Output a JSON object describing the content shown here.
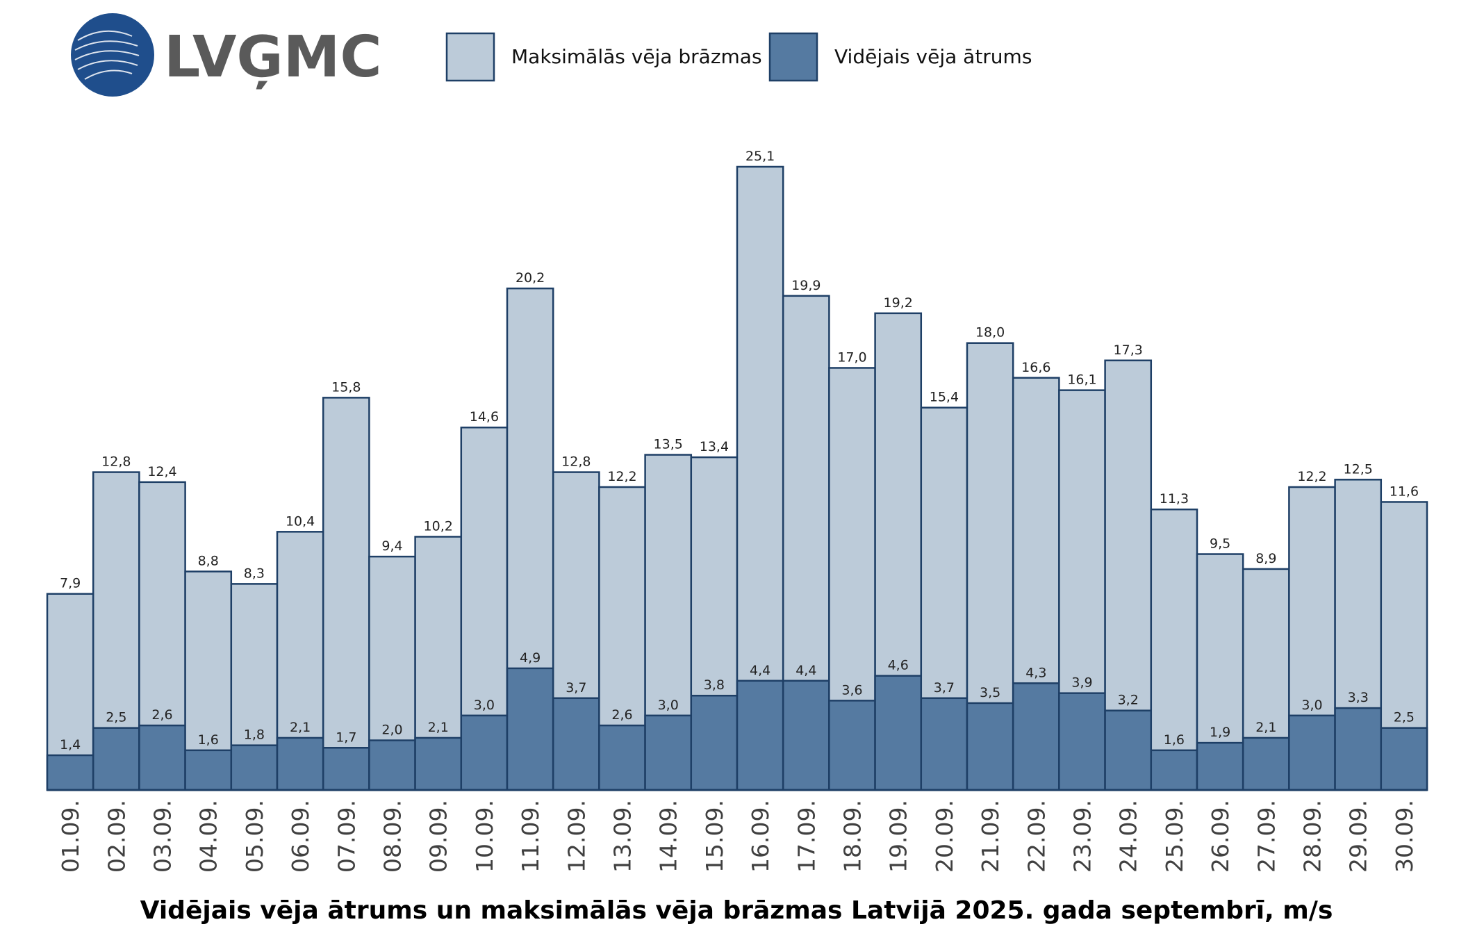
{
  "logo": {
    "text": "LVĢMC",
    "text_color": "#5a5a5a",
    "emblem_color": "#1f4e8c"
  },
  "colors": {
    "gust_fill": "#bccbd9",
    "avg_fill": "#557aa1",
    "bar_stroke": "#1e3f66",
    "axis": "#1e3f66"
  },
  "chart_data": {
    "type": "bar",
    "title": "Vidējais vēja ātrums un maksimālās vēja brāzmas Latvijā 2025. gada septembrī, m/s",
    "categories": [
      "01.09.",
      "02.09.",
      "03.09.",
      "04.09.",
      "05.09.",
      "06.09.",
      "07.09.",
      "08.09.",
      "09.09.",
      "10.09.",
      "11.09.",
      "12.09.",
      "13.09.",
      "14.09.",
      "15.09.",
      "16.09.",
      "17.09.",
      "18.09.",
      "19.09.",
      "20.09.",
      "21.09.",
      "22.09.",
      "23.09.",
      "24.09.",
      "25.09.",
      "26.09.",
      "27.09.",
      "28.09.",
      "29.09.",
      "30.09."
    ],
    "series": [
      {
        "name": "Maksimālās vēja brāzmas",
        "values": [
          7.9,
          12.8,
          12.4,
          8.8,
          8.3,
          10.4,
          15.8,
          9.4,
          10.2,
          14.6,
          20.2,
          12.8,
          12.2,
          13.5,
          13.4,
          25.1,
          19.9,
          17.0,
          19.2,
          15.4,
          18.0,
          16.6,
          16.1,
          17.3,
          11.3,
          9.5,
          8.9,
          12.2,
          12.5,
          11.6
        ]
      },
      {
        "name": "Vidējais vēja ātrums",
        "values": [
          1.4,
          2.5,
          2.6,
          1.6,
          1.8,
          2.1,
          1.7,
          2.0,
          2.1,
          3.0,
          4.9,
          3.7,
          2.6,
          3.0,
          3.8,
          4.4,
          4.4,
          3.6,
          4.6,
          3.7,
          3.5,
          4.3,
          3.9,
          3.2,
          1.6,
          1.9,
          2.1,
          3.0,
          3.3,
          2.5
        ]
      }
    ],
    "overlay": true,
    "ylim": [
      0,
      25.1
    ],
    "y_axis_visible": false,
    "grid": false,
    "legend_position": "top"
  }
}
